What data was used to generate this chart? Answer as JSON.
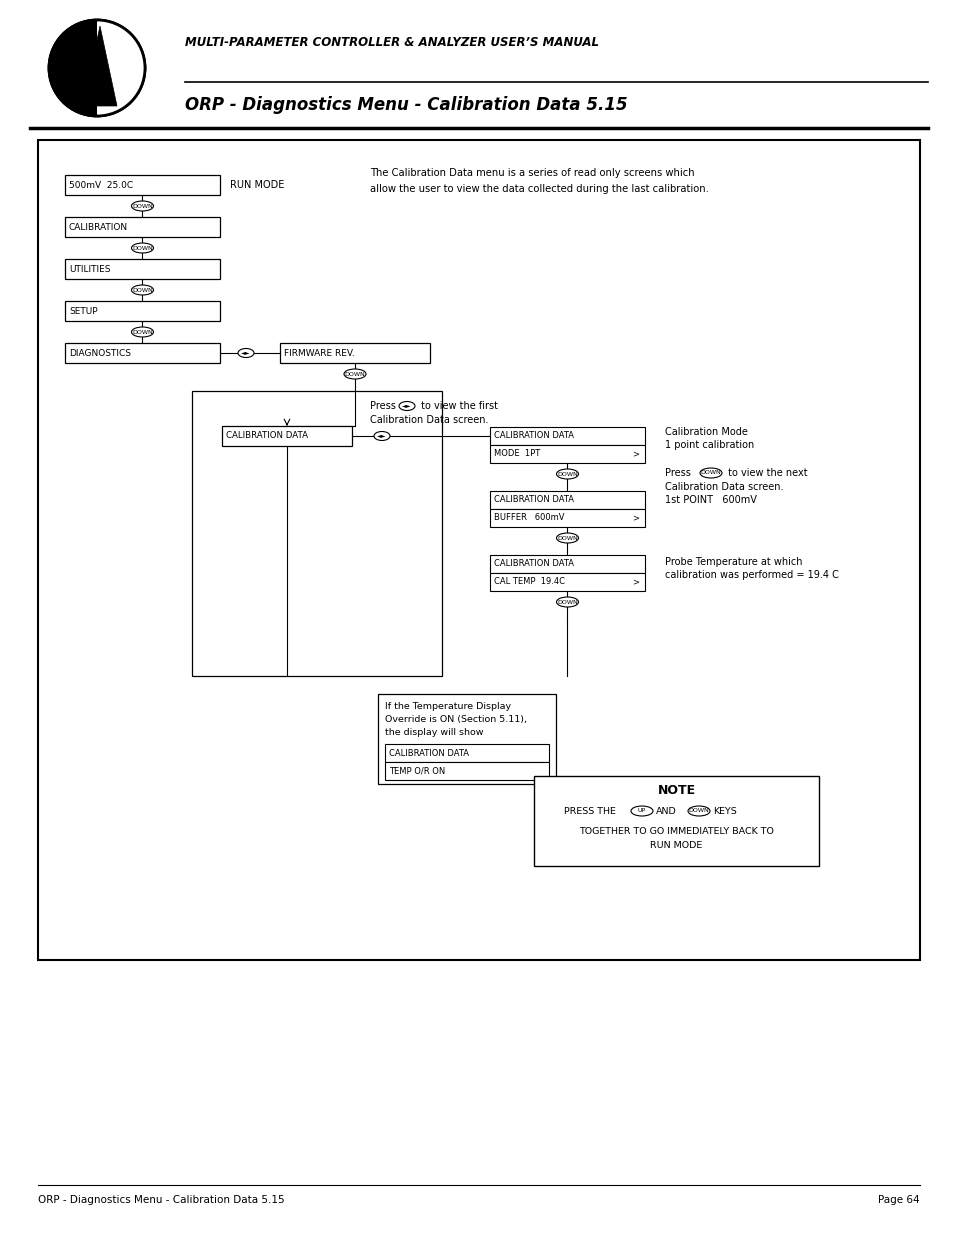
{
  "page_bg": "#ffffff",
  "header_title1": "MULTI-PARAMETER CONTROLLER & ANALYZER USER’S MANUAL",
  "header_title2": "ORP - Diagnostics Menu - Calibration Data 5.15",
  "footer_left": "ORP - Diagnostics Menu - Calibration Data 5.15",
  "footer_right": "Page 64",
  "desc_text1": "The Calibration Data menu is a series of read only screens which",
  "desc_text2": "allow the user to view the data collected during the last calibration.",
  "note_title": "NOTE",
  "note_line2": "PRESS THE",
  "note_line2b": "AND",
  "note_line2c": "KEYS",
  "note_line3": "TOGETHER TO GO IMMEDIATELY BACK TO",
  "note_line4": "RUN MODE"
}
